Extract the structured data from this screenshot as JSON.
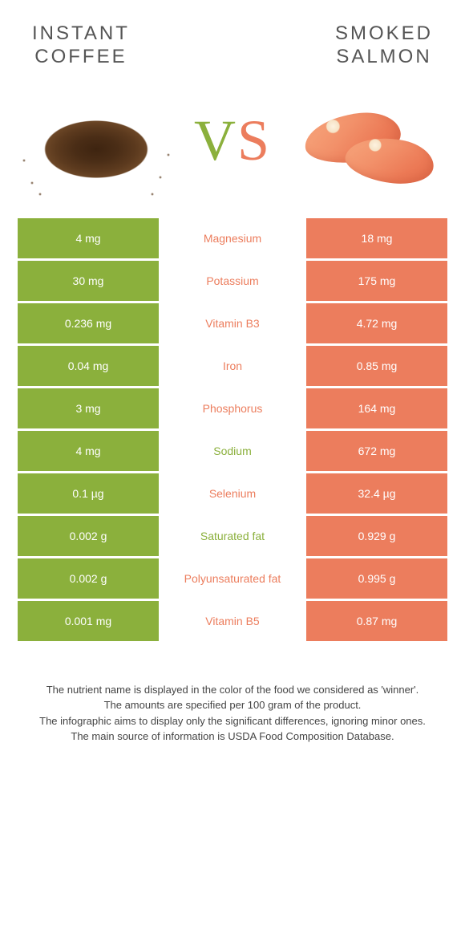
{
  "left_title_line1": "INSTANT",
  "left_title_line2": "COFFEE",
  "right_title_line1": "SMOKED",
  "right_title_line2": "SALMON",
  "vs_v": "V",
  "vs_s": "S",
  "colors": {
    "left": "#8bb03c",
    "right": "#ec7d5d"
  },
  "rows": [
    {
      "left": "4 mg",
      "label": "Magnesium",
      "right": "18 mg",
      "winner": "right"
    },
    {
      "left": "30 mg",
      "label": "Potassium",
      "right": "175 mg",
      "winner": "right"
    },
    {
      "left": "0.236 mg",
      "label": "Vitamin B3",
      "right": "4.72 mg",
      "winner": "right"
    },
    {
      "left": "0.04 mg",
      "label": "Iron",
      "right": "0.85 mg",
      "winner": "right"
    },
    {
      "left": "3 mg",
      "label": "Phosphorus",
      "right": "164 mg",
      "winner": "right"
    },
    {
      "left": "4 mg",
      "label": "Sodium",
      "right": "672 mg",
      "winner": "left"
    },
    {
      "left": "0.1 µg",
      "label": "Selenium",
      "right": "32.4 µg",
      "winner": "right"
    },
    {
      "left": "0.002 g",
      "label": "Saturated fat",
      "right": "0.929 g",
      "winner": "left"
    },
    {
      "left": "0.002 g",
      "label": "Polyunsaturated fat",
      "right": "0.995 g",
      "winner": "right"
    },
    {
      "left": "0.001 mg",
      "label": "Vitamin B5",
      "right": "0.87 mg",
      "winner": "right"
    }
  ],
  "footer": {
    "l1": "The nutrient name is displayed in the color of the food we considered as 'winner'.",
    "l2": "The amounts are specified per 100 gram of the product.",
    "l3": "The infographic aims to display only the significant differences, ignoring minor ones.",
    "l4": "The main source of information is USDA Food Composition Database."
  }
}
